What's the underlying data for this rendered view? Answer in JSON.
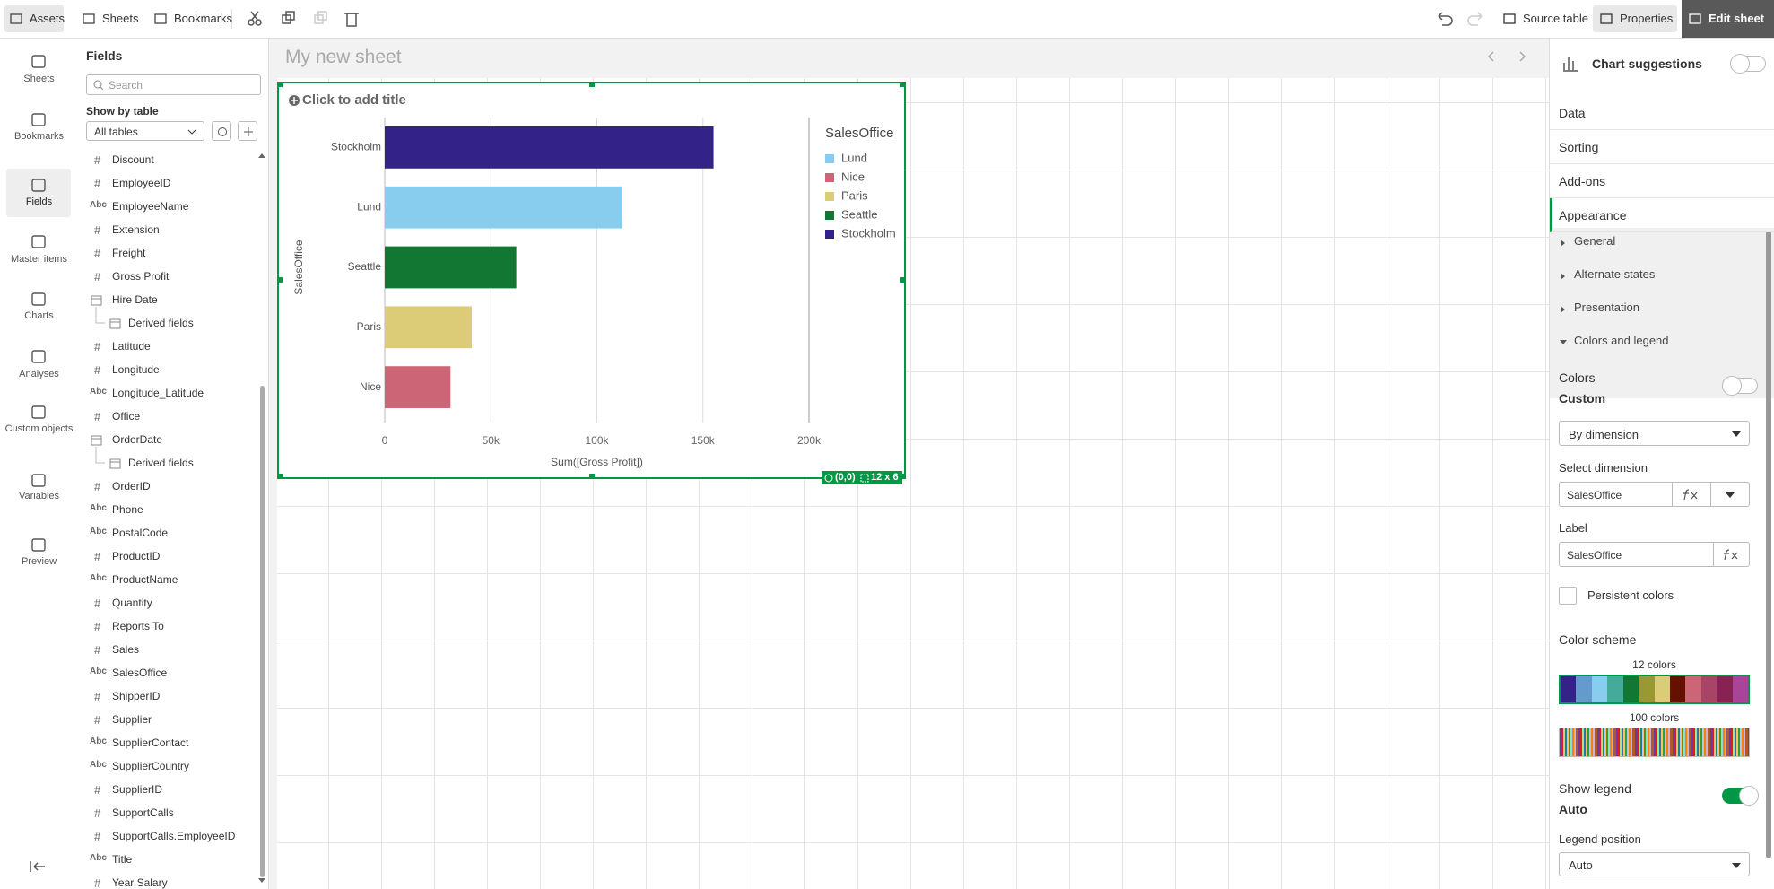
{
  "toolbar": {
    "left": [
      "Assets",
      "Sheets",
      "Bookmarks"
    ],
    "right": [
      "Source table",
      "Properties",
      "Edit sheet"
    ]
  },
  "nav": [
    "Sheets",
    "Bookmarks",
    "Fields",
    "Master items",
    "Charts",
    "Analyses",
    "Custom objects",
    "Variables",
    "Preview"
  ],
  "fields": {
    "title": "Fields",
    "search_placeholder": "Search",
    "show_by": "Show by table",
    "table_select": "All tables",
    "items": [
      {
        "type": "#",
        "name": "Discount"
      },
      {
        "type": "#",
        "name": "EmployeeID"
      },
      {
        "type": "Abc",
        "name": "EmployeeName"
      },
      {
        "type": "#",
        "name": "Extension"
      },
      {
        "type": "#",
        "name": "Freight"
      },
      {
        "type": "#",
        "name": "Gross Profit"
      },
      {
        "icon": "calendar",
        "name": "Hire Date"
      },
      {
        "icon": "derived",
        "name": "Derived fields"
      },
      {
        "type": "#",
        "name": "Latitude"
      },
      {
        "type": "#",
        "name": "Longitude"
      },
      {
        "type": "Abc",
        "name": "Longitude_Latitude"
      },
      {
        "type": "#",
        "name": "Office"
      },
      {
        "icon": "calendar",
        "name": "OrderDate"
      },
      {
        "icon": "derived",
        "name": "Derived fields"
      },
      {
        "type": "#",
        "name": "OrderID"
      },
      {
        "type": "Abc",
        "name": "Phone"
      },
      {
        "type": "Abc",
        "name": "PostalCode"
      },
      {
        "type": "#",
        "name": "ProductID"
      },
      {
        "type": "Abc",
        "name": "ProductName"
      },
      {
        "type": "#",
        "name": "Quantity"
      },
      {
        "type": "#",
        "name": "Reports To"
      },
      {
        "type": "#",
        "name": "Sales"
      },
      {
        "type": "Abc",
        "name": "SalesOffice"
      },
      {
        "type": "#",
        "name": "ShipperID"
      },
      {
        "type": "#",
        "name": "Supplier"
      },
      {
        "type": "Abc",
        "name": "SupplierContact"
      },
      {
        "type": "Abc",
        "name": "SupplierCountry"
      },
      {
        "type": "#",
        "name": "SupplierID"
      },
      {
        "type": "#",
        "name": "SupportCalls"
      },
      {
        "type": "#",
        "name": "SupportCalls.EmployeeID"
      },
      {
        "type": "Abc",
        "name": "Title"
      },
      {
        "type": "#",
        "name": "Year Salary"
      }
    ]
  },
  "sheet": {
    "title": "My new sheet",
    "chart_title_placeholder": "Click to add title",
    "position": "(0,0)",
    "size": "12 x 6"
  },
  "chart_data": {
    "type": "bar",
    "orientation": "horizontal",
    "categories": [
      "Stockholm",
      "Lund",
      "Seattle",
      "Paris",
      "Nice"
    ],
    "values": [
      155000,
      112000,
      62000,
      41000,
      31000
    ],
    "colors": [
      "#332288",
      "#88ccee",
      "#117733",
      "#ddcc77",
      "#cc6677"
    ],
    "x_label": "Sum([Gross Profit])",
    "y_label": "SalesOffice",
    "xlim": [
      0,
      200000
    ],
    "xticks": [
      0,
      {
        "value": 50000,
        "label": "50k"
      },
      {
        "value": 100000,
        "label": "100k"
      },
      {
        "value": 150000,
        "label": "150k"
      },
      {
        "value": 200000,
        "label": "200k"
      }
    ],
    "grid": true,
    "legend": {
      "position": "right",
      "title": "SalesOffice",
      "items": [
        {
          "name": "Lund",
          "color": "#88ccee"
        },
        {
          "name": "Nice",
          "color": "#cc6677"
        },
        {
          "name": "Paris",
          "color": "#ddcc77"
        },
        {
          "name": "Seattle",
          "color": "#117733"
        },
        {
          "name": "Stockholm",
          "color": "#332288"
        }
      ]
    }
  },
  "properties": {
    "suggestions": "Chart suggestions",
    "suggestions_on": false,
    "tabs": [
      "Data",
      "Sorting",
      "Add-ons",
      "Appearance"
    ],
    "sections": [
      "General",
      "Alternate states",
      "Presentation",
      "Colors and legend"
    ],
    "colors_label": "Colors",
    "colors_mode": "Custom",
    "colors_auto_on": false,
    "color_by": "By dimension",
    "select_dimension_label": "Select dimension",
    "select_dimension": "SalesOffice",
    "label_label": "Label",
    "label": "SalesOffice",
    "persistent_colors": "Persistent colors",
    "color_scheme": "Color scheme",
    "scheme_12": "12 colors",
    "scheme_12_colors": [
      "#332288",
      "#6699cc",
      "#88ccee",
      "#44aa99",
      "#117733",
      "#999933",
      "#ddcc77",
      "#661100",
      "#cc6677",
      "#aa4466",
      "#882255",
      "#aa4499"
    ],
    "scheme_100": "100 colors",
    "show_legend": "Show legend",
    "show_legend_on": true,
    "show_legend_mode": "Auto",
    "legend_position_label": "Legend position",
    "legend_position": "Auto"
  }
}
